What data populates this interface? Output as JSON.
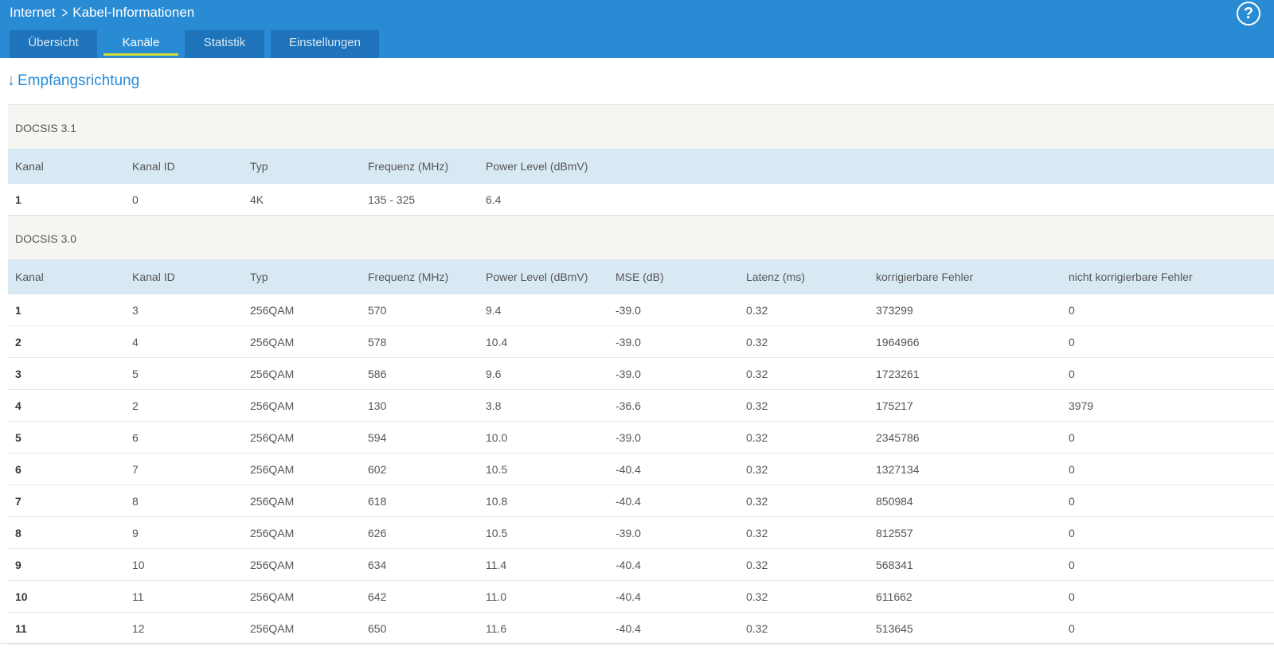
{
  "breadcrumb": {
    "parent": "Internet",
    "current": "Kabel-Informationen"
  },
  "help_label": "?",
  "tabs": [
    {
      "label": "Übersicht",
      "active": false
    },
    {
      "label": "Kanäle",
      "active": true
    },
    {
      "label": "Statistik",
      "active": false
    },
    {
      "label": "Einstellungen",
      "active": false
    }
  ],
  "section": {
    "arrow": "↓",
    "title": "Empfangsrichtung"
  },
  "docsis31": {
    "title": "DOCSIS 3.1",
    "columns": [
      "Kanal",
      "Kanal ID",
      "Typ",
      "Frequenz (MHz)",
      "Power Level (dBmV)"
    ],
    "rows": [
      [
        "1",
        "0",
        "4K",
        "135 - 325",
        "6.4"
      ]
    ]
  },
  "docsis30": {
    "title": "DOCSIS 3.0",
    "columns": [
      "Kanal",
      "Kanal ID",
      "Typ",
      "Frequenz (MHz)",
      "Power Level (dBmV)",
      "MSE (dB)",
      "Latenz (ms)",
      "korrigierbare Fehler",
      "nicht korrigierbare Fehler"
    ],
    "rows": [
      [
        "1",
        "3",
        "256QAM",
        "570",
        "9.4",
        "-39.0",
        "0.32",
        "373299",
        "0"
      ],
      [
        "2",
        "4",
        "256QAM",
        "578",
        "10.4",
        "-39.0",
        "0.32",
        "1964966",
        "0"
      ],
      [
        "3",
        "5",
        "256QAM",
        "586",
        "9.6",
        "-39.0",
        "0.32",
        "1723261",
        "0"
      ],
      [
        "4",
        "2",
        "256QAM",
        "130",
        "3.8",
        "-36.6",
        "0.32",
        "175217",
        "3979"
      ],
      [
        "5",
        "6",
        "256QAM",
        "594",
        "10.0",
        "-39.0",
        "0.32",
        "2345786",
        "0"
      ],
      [
        "6",
        "7",
        "256QAM",
        "602",
        "10.5",
        "-40.4",
        "0.32",
        "1327134",
        "0"
      ],
      [
        "7",
        "8",
        "256QAM",
        "618",
        "10.8",
        "-40.4",
        "0.32",
        "850984",
        "0"
      ],
      [
        "8",
        "9",
        "256QAM",
        "626",
        "10.5",
        "-39.0",
        "0.32",
        "812557",
        "0"
      ],
      [
        "9",
        "10",
        "256QAM",
        "634",
        "11.4",
        "-40.4",
        "0.32",
        "568341",
        "0"
      ],
      [
        "10",
        "11",
        "256QAM",
        "642",
        "11.0",
        "-40.4",
        "0.32",
        "611662",
        "0"
      ],
      [
        "11",
        "12",
        "256QAM",
        "650",
        "11.6",
        "-40.4",
        "0.32",
        "513645",
        "0"
      ]
    ]
  }
}
